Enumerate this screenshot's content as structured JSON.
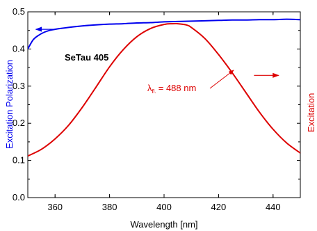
{
  "chart_data": {
    "type": "line",
    "xlabel": "Wavelength [nm]",
    "ylabel_left": "Excitation Polarization",
    "ylabel_right": "Excitation",
    "xlim": [
      350,
      450
    ],
    "ylim": [
      0.0,
      0.5
    ],
    "x_ticks": [
      360,
      380,
      400,
      420,
      440
    ],
    "x_tick_labels": [
      "360",
      "380",
      "400",
      "420",
      "440"
    ],
    "y_ticks": [
      0.0,
      0.1,
      0.2,
      0.3,
      0.4,
      0.5
    ],
    "y_tick_labels": [
      "0.0",
      "0.1",
      "0.2",
      "0.3",
      "0.4",
      "0.5"
    ],
    "grid": false,
    "annotations": {
      "sample_label": "SeTau 405",
      "lambda_symbol": "λ",
      "lambda_subscript": "fl.",
      "lambda_value": "= 488 nm"
    },
    "series": [
      {
        "color": "#0000ee",
        "axis": "left",
        "x": [
          350,
          352,
          354,
          356,
          358,
          360,
          365,
          370,
          375,
          380,
          385,
          390,
          395,
          400,
          405,
          410,
          415,
          420,
          425,
          430,
          435,
          440,
          445,
          450
        ],
        "y": [
          0.4,
          0.425,
          0.437,
          0.445,
          0.45,
          0.453,
          0.458,
          0.462,
          0.465,
          0.467,
          0.468,
          0.47,
          0.471,
          0.473,
          0.474,
          0.475,
          0.476,
          0.477,
          0.478,
          0.478,
          0.479,
          0.479,
          0.48,
          0.479
        ]
      },
      {
        "color": "#dd0000",
        "axis": "left",
        "x": [
          350,
          355,
          360,
          365,
          370,
          375,
          380,
          385,
          390,
          395,
          400,
          403,
          405,
          408,
          410,
          415,
          420,
          425,
          430,
          435,
          440,
          445,
          450
        ],
        "y": [
          0.112,
          0.13,
          0.158,
          0.195,
          0.243,
          0.297,
          0.352,
          0.398,
          0.433,
          0.455,
          0.466,
          0.468,
          0.468,
          0.465,
          0.458,
          0.428,
          0.385,
          0.336,
          0.283,
          0.23,
          0.184,
          0.147,
          0.12
        ]
      }
    ],
    "arrows": [
      {
        "color": "#0000ee",
        "direction": "left",
        "x": [
          360,
          353
        ],
        "y": 0.453
      },
      {
        "color": "#dd0000",
        "direction": "right",
        "x": [
          433,
          442
        ],
        "y": 0.329
      }
    ]
  }
}
